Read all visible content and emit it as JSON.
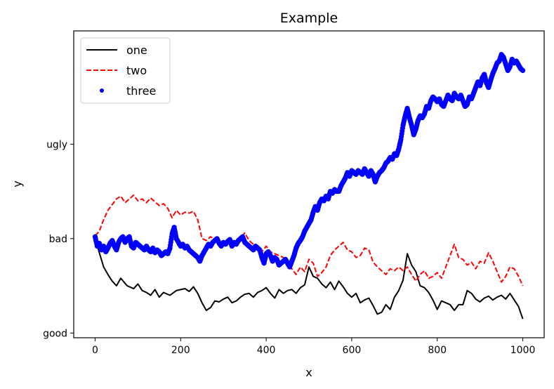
{
  "chart_data": {
    "type": "line",
    "title": "Example",
    "xlabel": "x",
    "ylabel": "y",
    "xlim": [
      -50,
      1050
    ],
    "ylim": [
      -0.05,
      3.2
    ],
    "x_ticks": [
      0,
      200,
      400,
      600,
      800,
      1000
    ],
    "y_ticks": [
      {
        "value": 0,
        "label": "good"
      },
      {
        "value": 1,
        "label": "bad"
      },
      {
        "value": 2,
        "label": "ugly"
      }
    ],
    "grid": false,
    "legend": {
      "placement": "top-left",
      "items": [
        {
          "label": "one",
          "style": "solid-line",
          "color": "#000000"
        },
        {
          "label": "two",
          "style": "dashed-line",
          "color": "#ff0000"
        },
        {
          "label": "three",
          "style": "dot-markers",
          "color": "#0000ff"
        }
      ]
    },
    "series": [
      {
        "name": "one",
        "color": "#000000",
        "style": "solid",
        "x": [
          0,
          10,
          20,
          30,
          40,
          50,
          60,
          75,
          90,
          100,
          110,
          120,
          130,
          140,
          150,
          160,
          175,
          190,
          200,
          210,
          220,
          230,
          240,
          250,
          260,
          270,
          280,
          290,
          300,
          310,
          320,
          330,
          340,
          350,
          360,
          370,
          380,
          390,
          400,
          410,
          420,
          430,
          440,
          450,
          460,
          470,
          480,
          490,
          500,
          510,
          520,
          530,
          540,
          550,
          560,
          570,
          580,
          590,
          600,
          610,
          620,
          630,
          640,
          650,
          660,
          670,
          680,
          690,
          700,
          710,
          720,
          730,
          740,
          750,
          760,
          770,
          780,
          790,
          800,
          810,
          820,
          830,
          840,
          850,
          860,
          870,
          880,
          890,
          900,
          910,
          920,
          930,
          940,
          950,
          960,
          970,
          980,
          990,
          1000
        ],
        "y": [
          1.0,
          0.85,
          0.7,
          0.62,
          0.55,
          0.5,
          0.58,
          0.5,
          0.47,
          0.52,
          0.45,
          0.43,
          0.4,
          0.46,
          0.38,
          0.43,
          0.4,
          0.45,
          0.46,
          0.47,
          0.44,
          0.49,
          0.42,
          0.32,
          0.24,
          0.27,
          0.34,
          0.33,
          0.36,
          0.38,
          0.32,
          0.34,
          0.38,
          0.41,
          0.42,
          0.38,
          0.43,
          0.45,
          0.48,
          0.42,
          0.37,
          0.46,
          0.42,
          0.45,
          0.46,
          0.42,
          0.48,
          0.51,
          0.7,
          0.6,
          0.58,
          0.52,
          0.48,
          0.54,
          0.46,
          0.55,
          0.49,
          0.42,
          0.38,
          0.42,
          0.32,
          0.35,
          0.37,
          0.29,
          0.2,
          0.22,
          0.3,
          0.25,
          0.38,
          0.45,
          0.56,
          0.84,
          0.72,
          0.65,
          0.5,
          0.48,
          0.43,
          0.35,
          0.25,
          0.34,
          0.32,
          0.3,
          0.24,
          0.3,
          0.3,
          0.45,
          0.42,
          0.36,
          0.33,
          0.37,
          0.39,
          0.35,
          0.38,
          0.4,
          0.36,
          0.42,
          0.35,
          0.28,
          0.15
        ]
      },
      {
        "name": "two",
        "color": "#ff0000",
        "style": "dashed",
        "x": [
          0,
          10,
          20,
          30,
          40,
          50,
          60,
          70,
          80,
          90,
          100,
          110,
          120,
          130,
          140,
          150,
          160,
          170,
          180,
          190,
          200,
          210,
          220,
          230,
          240,
          250,
          260,
          270,
          280,
          290,
          300,
          310,
          320,
          330,
          340,
          350,
          360,
          370,
          380,
          390,
          400,
          410,
          420,
          430,
          440,
          450,
          460,
          470,
          480,
          490,
          500,
          510,
          520,
          530,
          540,
          550,
          560,
          570,
          580,
          590,
          600,
          610,
          620,
          630,
          640,
          650,
          660,
          670,
          680,
          690,
          700,
          710,
          720,
          730,
          740,
          750,
          760,
          770,
          780,
          790,
          800,
          810,
          820,
          830,
          840,
          850,
          860,
          870,
          880,
          890,
          900,
          910,
          920,
          930,
          940,
          950,
          960,
          970,
          980,
          990,
          1000
        ],
        "y": [
          1.03,
          1.08,
          1.2,
          1.3,
          1.36,
          1.42,
          1.45,
          1.38,
          1.42,
          1.46,
          1.4,
          1.42,
          1.38,
          1.43,
          1.39,
          1.35,
          1.37,
          1.32,
          1.22,
          1.3,
          1.25,
          1.28,
          1.27,
          1.29,
          1.2,
          1.0,
          0.98,
          1.02,
          0.99,
          0.95,
          0.92,
          0.94,
          0.98,
          0.96,
          1.0,
          1.06,
          0.98,
          0.94,
          0.88,
          0.86,
          0.92,
          0.86,
          0.84,
          0.82,
          0.8,
          0.7,
          0.68,
          0.62,
          0.7,
          0.65,
          0.78,
          0.74,
          0.6,
          0.64,
          0.7,
          0.82,
          0.88,
          0.92,
          0.96,
          0.88,
          0.86,
          0.8,
          0.82,
          0.9,
          0.88,
          0.75,
          0.7,
          0.66,
          0.62,
          0.68,
          0.66,
          0.7,
          0.66,
          0.7,
          0.62,
          0.55,
          0.62,
          0.66,
          0.58,
          0.6,
          0.64,
          0.58,
          0.7,
          0.82,
          0.94,
          0.8,
          0.78,
          0.72,
          0.75,
          0.68,
          0.76,
          0.74,
          0.85,
          0.76,
          0.65,
          0.54,
          0.6,
          0.7,
          0.68,
          0.6,
          0.5
        ]
      },
      {
        "name": "three",
        "color": "#0000ff",
        "style": "markers",
        "x": [
          0,
          5,
          10,
          15,
          20,
          25,
          30,
          35,
          40,
          45,
          50,
          55,
          60,
          65,
          70,
          75,
          80,
          85,
          90,
          95,
          100,
          105,
          110,
          115,
          120,
          125,
          130,
          135,
          140,
          145,
          150,
          155,
          160,
          165,
          170,
          175,
          180,
          185,
          190,
          195,
          200,
          205,
          210,
          215,
          220,
          225,
          230,
          235,
          240,
          245,
          250,
          255,
          260,
          265,
          270,
          275,
          280,
          285,
          290,
          295,
          300,
          305,
          310,
          315,
          320,
          325,
          330,
          335,
          340,
          345,
          350,
          355,
          360,
          365,
          370,
          375,
          380,
          385,
          390,
          395,
          400,
          405,
          410,
          415,
          420,
          425,
          430,
          435,
          440,
          445,
          450,
          455,
          460,
          465,
          470,
          475,
          480,
          485,
          490,
          495,
          500,
          505,
          510,
          515,
          520,
          525,
          530,
          535,
          540,
          545,
          550,
          555,
          560,
          565,
          570,
          575,
          580,
          585,
          590,
          595,
          600,
          605,
          610,
          615,
          620,
          625,
          630,
          635,
          640,
          645,
          650,
          655,
          660,
          665,
          670,
          675,
          680,
          685,
          690,
          695,
          700,
          705,
          710,
          715,
          720,
          725,
          730,
          735,
          740,
          745,
          750,
          755,
          760,
          765,
          770,
          775,
          780,
          785,
          790,
          795,
          800,
          805,
          810,
          815,
          820,
          825,
          830,
          835,
          840,
          845,
          850,
          855,
          860,
          865,
          870,
          875,
          880,
          885,
          890,
          895,
          900,
          905,
          910,
          915,
          920,
          925,
          930,
          935,
          940,
          945,
          950,
          955,
          960,
          965,
          970,
          975,
          980,
          985,
          990,
          995,
          1000
        ],
        "y": [
          1.02,
          0.92,
          0.95,
          0.88,
          0.92,
          0.86,
          0.9,
          0.95,
          0.98,
          0.92,
          0.88,
          0.96,
          1.0,
          1.02,
          0.96,
          1.0,
          1.02,
          0.92,
          0.9,
          0.96,
          0.94,
          0.92,
          0.9,
          0.88,
          0.92,
          0.88,
          0.86,
          0.9,
          0.85,
          0.88,
          0.86,
          0.82,
          0.84,
          0.86,
          0.84,
          0.9,
          1.05,
          1.12,
          1.0,
          0.96,
          0.92,
          0.94,
          0.9,
          0.92,
          0.88,
          0.86,
          0.84,
          0.82,
          0.8,
          0.76,
          0.82,
          0.86,
          0.9,
          0.94,
          0.92,
          0.96,
          0.98,
          1.0,
          0.95,
          0.92,
          0.96,
          0.94,
          0.97,
          0.99,
          0.92,
          0.96,
          0.94,
          0.98,
          1.0,
          1.02,
          0.96,
          0.94,
          0.92,
          0.9,
          0.88,
          0.92,
          0.9,
          0.88,
          0.8,
          0.74,
          0.84,
          0.86,
          0.82,
          0.76,
          0.8,
          0.78,
          0.72,
          0.74,
          0.76,
          0.78,
          0.74,
          0.7,
          0.76,
          0.82,
          0.9,
          0.95,
          0.98,
          1.02,
          1.08,
          1.12,
          1.16,
          1.2,
          1.28,
          1.34,
          1.3,
          1.38,
          1.42,
          1.4,
          1.45,
          1.42,
          1.5,
          1.48,
          1.52,
          1.5,
          1.5,
          1.56,
          1.6,
          1.64,
          1.7,
          1.66,
          1.72,
          1.7,
          1.68,
          1.72,
          1.7,
          1.68,
          1.74,
          1.7,
          1.66,
          1.72,
          1.68,
          1.6,
          1.66,
          1.7,
          1.72,
          1.75,
          1.8,
          1.82,
          1.86,
          1.84,
          1.9,
          1.88,
          1.95,
          2.05,
          2.2,
          2.3,
          2.38,
          2.28,
          2.2,
          2.1,
          2.16,
          2.25,
          2.3,
          2.28,
          2.32,
          2.4,
          2.38,
          2.46,
          2.5,
          2.48,
          2.45,
          2.48,
          2.42,
          2.4,
          2.46,
          2.52,
          2.48,
          2.46,
          2.54,
          2.5,
          2.48,
          2.52,
          2.46,
          2.4,
          2.42,
          2.5,
          2.48,
          2.54,
          2.6,
          2.66,
          2.62,
          2.7,
          2.74,
          2.65,
          2.6,
          2.68,
          2.75,
          2.8,
          2.86,
          2.88,
          2.95,
          2.92,
          2.85,
          2.78,
          2.82,
          2.9,
          2.86,
          2.88,
          2.84,
          2.8,
          2.78
        ]
      }
    ]
  }
}
